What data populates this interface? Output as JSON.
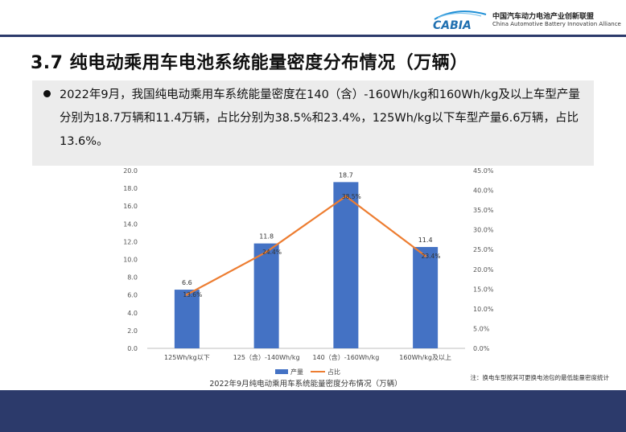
{
  "header": {
    "logo_text": "CABIA",
    "org_cn": "中国汽车动力电池产业创新联盟",
    "org_en": "China Automotive Battery Innovation Alliance"
  },
  "page": {
    "title": "3.7 纯电动乘用车电池系统能量密度分布情况（万辆）",
    "summary": "2022年9月，我国纯电动乘用车系统能量密度在140（含）-160Wh/kg和160Wh/kg及以上车型产量分别为18.7万辆和11.4万辆，占比分别为38.5%和23.4%，125Wh/kg以下车型产量6.6万辆，占比13.6%。"
  },
  "chart_data": {
    "type": "bar",
    "title": "2022年9月纯电动乘用车系统能量密度分布情况（万辆）",
    "categories": [
      "125Wh/kg以下",
      "125（含）-140Wh/kg",
      "140（含）-160Wh/kg",
      "160Wh/kg及以上"
    ],
    "series": [
      {
        "name": "产量",
        "type": "bar",
        "axis": "left",
        "values": [
          6.6,
          11.8,
          18.7,
          11.4
        ],
        "labels": [
          "6.6",
          "11.8",
          "18.7",
          "11.4"
        ],
        "color": "#4472c4"
      },
      {
        "name": "占比",
        "type": "line",
        "axis": "right",
        "values": [
          13.6,
          24.4,
          38.5,
          23.4
        ],
        "labels": [
          "13.6%",
          "24.4%",
          "38.5%",
          "23.4%"
        ],
        "color": "#ed7d31"
      }
    ],
    "y_left": {
      "ylim": [
        0,
        20
      ],
      "ticks": [
        "0.0",
        "2.0",
        "4.0",
        "6.0",
        "8.0",
        "10.0",
        "12.0",
        "14.0",
        "16.0",
        "18.0",
        "20.0"
      ]
    },
    "y_right": {
      "ylim": [
        0,
        45
      ],
      "ticks": [
        "0.0%",
        "5.0%",
        "10.0%",
        "15.0%",
        "20.0%",
        "25.0%",
        "30.0%",
        "35.0%",
        "40.0%",
        "45.0%"
      ]
    },
    "grid": false,
    "legend_position": "bottom",
    "note": "注：换电车型按其可更换电池包的最低能量密度统计"
  }
}
